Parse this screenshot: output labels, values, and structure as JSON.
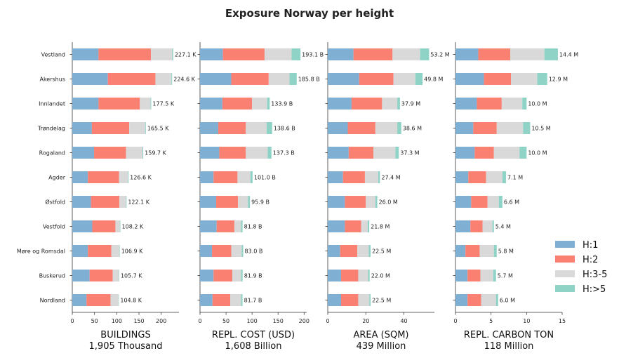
{
  "chart_data": {
    "type": "bar",
    "orientation": "horizontal",
    "stacked": true,
    "title": "Exposure Norway per height",
    "categories": [
      "Vestland",
      "Akershus",
      "Innlandet",
      "Trøndelag",
      "Rogaland",
      "Agder",
      "Østfold",
      "Vestfold",
      "Møre og Romsdal",
      "Buskerud",
      "Nordland"
    ],
    "legend": {
      "placement": "right",
      "entries": [
        {
          "label": "H:1",
          "color": "#7fb0d4"
        },
        {
          "label": "H:2",
          "color": "#fa8072"
        },
        {
          "label": "H:3-5",
          "color": "#d9d9d9"
        },
        {
          "label": "H:>5",
          "color": "#8fd3c7"
        }
      ]
    },
    "panels": [
      {
        "xlabel": "BUILDINGS",
        "total_label": "1,905 Thousand",
        "xlim": [
          0,
          240
        ],
        "xticks": [
          0,
          50,
          100,
          150,
          200
        ],
        "series": [
          {
            "name": "H:1",
            "values": [
              59,
              80,
              59,
              44,
              49,
              35,
              42,
              45,
              35,
              39,
              32
            ]
          },
          {
            "name": "H:2",
            "values": [
              118,
              107,
              93,
              84,
              72,
              70,
              64,
              52,
              53,
              52,
              54
            ]
          },
          {
            "name": "H:3-5",
            "values": [
              48,
              36,
              24,
              36,
              37,
              20,
              15,
              10,
              18,
              14,
              18
            ]
          },
          {
            "name": "H:>5",
            "values": [
              2.1,
              1.6,
              1.5,
              1.5,
              1.7,
              1.6,
              1.1,
              1.2,
              0.9,
              0.7,
              0.8
            ]
          }
        ],
        "labels": [
          "227.1 K",
          "224.6 K",
          "177.5 K",
          "165.5 K",
          "159.7 K",
          "126.6 K",
          "122.1 K",
          "108.2 K",
          "106.9 K",
          "105.7 K",
          "104.8 K"
        ]
      },
      {
        "xlabel": "REPL. COST (USD)",
        "total_label": "1,608 Billion",
        "xlim": [
          0,
          205
        ],
        "xticks": [
          0,
          50,
          100,
          150,
          200
        ],
        "series": [
          {
            "name": "H:1",
            "values": [
              44,
              60,
              43,
              35,
              37,
              26,
              31,
              32,
              23,
              26,
              24
            ]
          },
          {
            "name": "H:2",
            "values": [
              80,
              72,
              57,
              53,
              51,
              46,
              42,
              34,
              37,
              36,
              34
            ]
          },
          {
            "name": "H:3-5",
            "values": [
              52,
              40,
              29,
              40,
              42,
              25,
              19,
              13,
              20,
              17,
              21
            ]
          },
          {
            "name": "H:>5",
            "values": [
              17.1,
              13.8,
              4.9,
              10.6,
              7.3,
              4.0,
              3.9,
              2.8,
              3.0,
              2.9,
              2.7
            ]
          }
        ],
        "labels": [
          "193.1 B",
          "185.8 B",
          "133.9 B",
          "138.6 B",
          "137.3 B",
          "101.0 B",
          "95.9 B",
          "81.8 B",
          "83.0 B",
          "81.9 B",
          "81.7 B"
        ]
      },
      {
        "xlabel": "AREA (SQM)",
        "total_label": "439 Million",
        "xlim": [
          0,
          56
        ],
        "xticks": [
          0,
          20,
          40
        ],
        "series": [
          {
            "name": "H:1",
            "values": [
              13.5,
              16.5,
              12.5,
              10.5,
              11,
              8,
              9,
              9,
              6.5,
              7,
              7
            ]
          },
          {
            "name": "H:2",
            "values": [
              20.5,
              18,
              16,
              14.5,
              13,
              11.5,
              11,
              8.5,
              9,
              9,
              9
            ]
          },
          {
            "name": "H:3-5",
            "values": [
              14.5,
              11.5,
              8,
              11.5,
              11.5,
              7,
              5,
              3.5,
              6,
              5.2,
              5.8
            ]
          },
          {
            "name": "H:>5",
            "values": [
              4.7,
              3.8,
              1.4,
              2.1,
              1.8,
              0.9,
              1.0,
              0.8,
              1.0,
              0.8,
              0.7
            ]
          }
        ],
        "labels": [
          "53.2 M",
          "49.8 M",
          "37.9 M",
          "38.6 M",
          "37.3 M",
          "27.4 M",
          "26.0 M",
          "21.8 M",
          "22.5 M",
          "22.0 M",
          "22.5 M"
        ]
      },
      {
        "xlabel": "REPL. CARBON TON",
        "total_label": "118 Million",
        "xlim": [
          0,
          15
        ],
        "xticks": [
          0,
          5,
          10,
          15
        ],
        "series": [
          {
            "name": "H:1",
            "values": [
              3.2,
              4.0,
              3.0,
              2.5,
              2.7,
              1.8,
              2.2,
              2.1,
              1.4,
              1.7,
              1.7
            ]
          },
          {
            "name": "H:2",
            "values": [
              4.5,
              3.8,
              3.5,
              3.3,
              2.7,
              2.5,
              2.3,
              1.7,
              2.0,
              1.8,
              1.9
            ]
          },
          {
            "name": "H:3-5",
            "values": [
              4.8,
              3.7,
              2.9,
              3.7,
              3.6,
              2.3,
              1.6,
              1.4,
              2.0,
              1.8,
              2.1
            ]
          },
          {
            "name": "H:>5",
            "values": [
              1.9,
              1.4,
              0.6,
              1.0,
              1.0,
              0.5,
              0.5,
              0.2,
              0.4,
              0.4,
              0.3
            ]
          }
        ],
        "labels": [
          "14.4 M",
          "12.9 M",
          "10.0 M",
          "10.5 M",
          "10.0 M",
          "7.1 M",
          "6.6 M",
          "5.4 M",
          "5.8 M",
          "5.7 M",
          "6.0 M"
        ]
      }
    ]
  }
}
